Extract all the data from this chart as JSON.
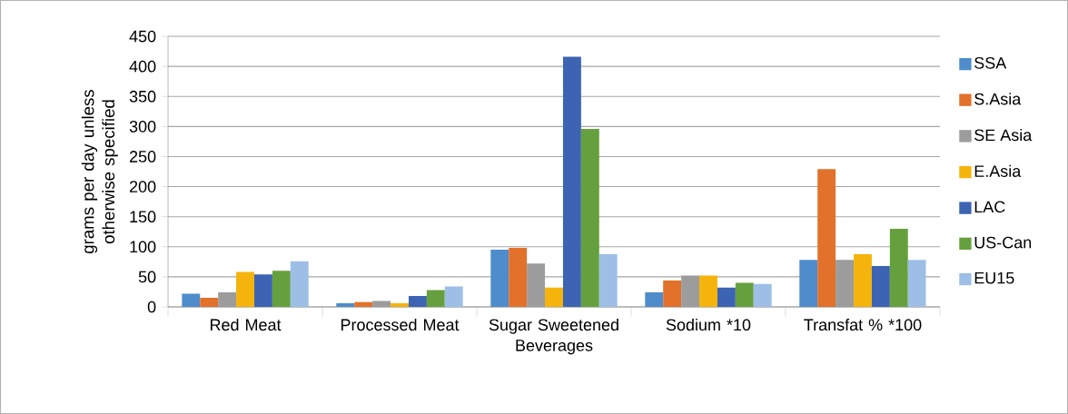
{
  "chart_data": {
    "type": "bar",
    "ylabel": "grams per day unless otherwise specified",
    "categories": [
      "Red Meat",
      "Processed Meat",
      "Sugar Sweetened Beverages",
      "Sodium *10",
      "Transfat % *100"
    ],
    "series": [
      {
        "name": "SSA",
        "color": "#4e8ccb",
        "values": [
          22,
          6,
          95,
          24,
          78
        ]
      },
      {
        "name": "S.Asia",
        "color": "#e2712b",
        "values": [
          15,
          8,
          98,
          44,
          229
        ]
      },
      {
        "name": "SE Asia",
        "color": "#9c9c9c",
        "values": [
          24,
          10,
          72,
          52,
          78
        ]
      },
      {
        "name": "E.Asia",
        "color": "#f5b40c",
        "values": [
          58,
          6,
          32,
          52,
          88
        ]
      },
      {
        "name": "LAC",
        "color": "#3c64b2",
        "values": [
          54,
          18,
          416,
          32,
          68
        ]
      },
      {
        "name": "US-Can",
        "color": "#66a03e",
        "values": [
          60,
          28,
          296,
          40,
          130
        ]
      },
      {
        "name": "EU15",
        "color": "#9dbfe6",
        "values": [
          76,
          34,
          88,
          38,
          78
        ]
      }
    ],
    "ylim": [
      0,
      450
    ],
    "yticks": [
      0,
      50,
      100,
      150,
      200,
      250,
      300,
      350,
      400,
      450
    ],
    "grid": "y",
    "legend": "right"
  }
}
